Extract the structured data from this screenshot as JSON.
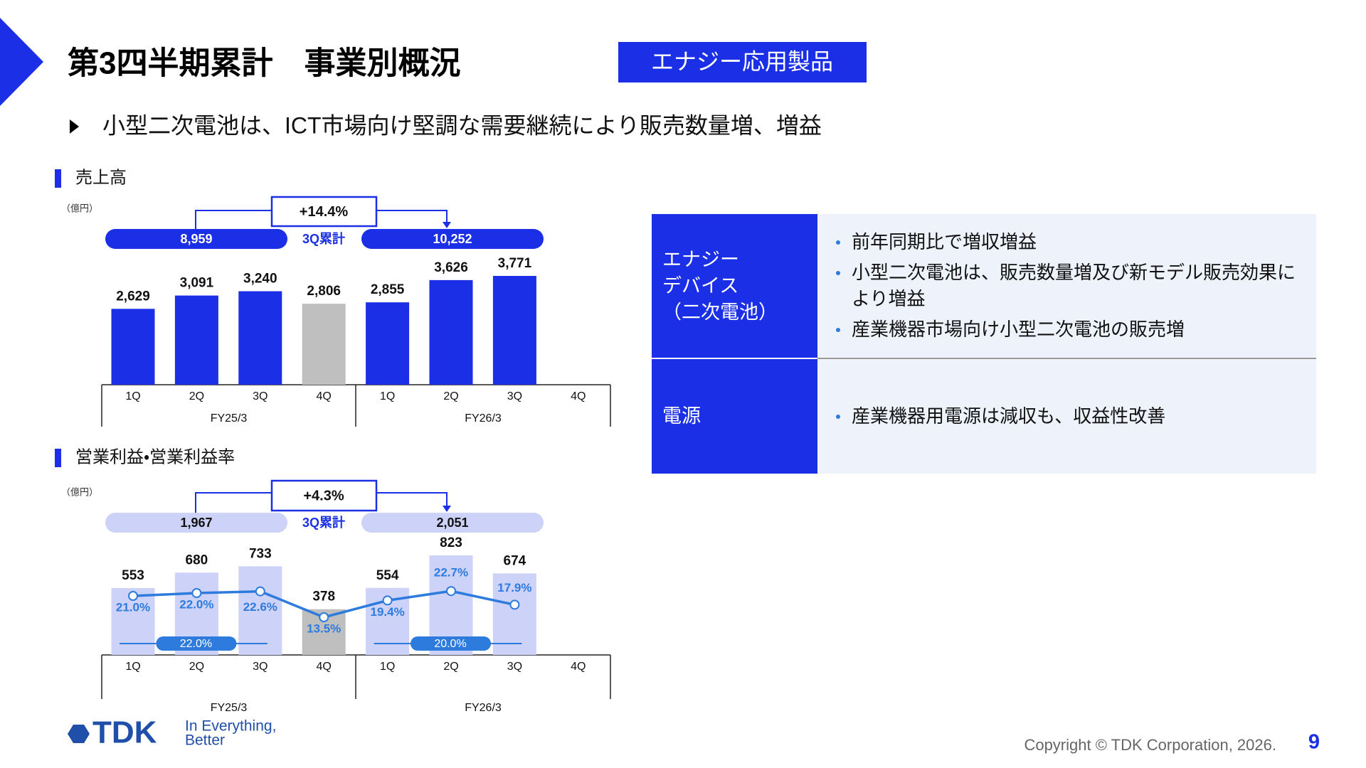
{
  "header": {
    "title": "第3四半期累計　事業別概況",
    "tag": "エナジー応用製品"
  },
  "lead": "小型二次電池は、ICT市場向け堅調な需要継続により販売数量増、増益",
  "chart_data": [
    {
      "type": "bar",
      "title": "売上高",
      "unit": "（億円）",
      "categories": [
        "1Q",
        "2Q",
        "3Q",
        "4Q",
        "1Q",
        "2Q",
        "3Q",
        "4Q"
      ],
      "groups": [
        "FY25/3",
        "FY26/3"
      ],
      "values": [
        2629,
        3091,
        3240,
        2806,
        2855,
        3626,
        3771,
        null
      ],
      "value_labels": [
        "2,629",
        "3,091",
        "3,240",
        "2,806",
        "2,855",
        "3,626",
        "3,771",
        null
      ],
      "colors": [
        "#1a2fe6",
        "#1a2fe6",
        "#1a2fe6",
        "#bfbfbf",
        "#1a2fe6",
        "#1a2fe6",
        "#1a2fe6",
        null
      ],
      "summary": {
        "label": "3Q累計",
        "growth": "+14.4%",
        "totals": [
          8959,
          10252
        ],
        "total_labels": [
          "8,959",
          "10,252"
        ],
        "color": "#1a2fe6"
      }
    },
    {
      "type": "bar_line",
      "title": "営業利益・営業利益率",
      "unit": "（億円）",
      "categories": [
        "1Q",
        "2Q",
        "3Q",
        "4Q",
        "1Q",
        "2Q",
        "3Q",
        "4Q"
      ],
      "groups": [
        "FY25/3",
        "FY26/3"
      ],
      "values": [
        553,
        680,
        733,
        378,
        554,
        823,
        674,
        null
      ],
      "colors": [
        "#cdd2f8",
        "#cdd2f8",
        "#cdd2f8",
        "#bfbfbf",
        "#cdd2f8",
        "#cdd2f8",
        "#cdd2f8",
        null
      ],
      "line": {
        "color": "#2e7bde",
        "values": [
          21.0,
          22.0,
          22.6,
          13.5,
          19.4,
          22.7,
          17.9,
          null
        ],
        "value_labels": [
          "21.0%",
          "22.0%",
          "22.6%",
          "13.5%",
          "19.4%",
          "22.7%",
          "17.9%",
          null
        ]
      },
      "averages": [
        {
          "value": 22.0,
          "label": "22.0%"
        },
        {
          "value": 20.0,
          "label": "20.0%"
        }
      ],
      "summary": {
        "label": "3Q累計",
        "growth": "+4.3%",
        "totals": [
          1967,
          2051
        ],
        "total_labels": [
          "1,967",
          "2,051"
        ],
        "color": "#cdd2f8"
      }
    }
  ],
  "table": {
    "rows": [
      {
        "segment": [
          "エナジー",
          "デバイス",
          "（二次電池）"
        ],
        "points": [
          "前年同期比で増収増益",
          "小型二次電池は、販売数量増及び新モデル販売効果により増益",
          "産業機器市場向け小型二次電池の販売増"
        ]
      },
      {
        "segment": [
          "電源"
        ],
        "points": [
          "産業機器用電源は減収も、収益性改善"
        ]
      }
    ]
  },
  "footer": {
    "logo": "TDK",
    "tagline": [
      "In Everything,",
      "Better"
    ],
    "copyright": "Copyright © TDK Corporation, 2026.",
    "page": 9
  }
}
